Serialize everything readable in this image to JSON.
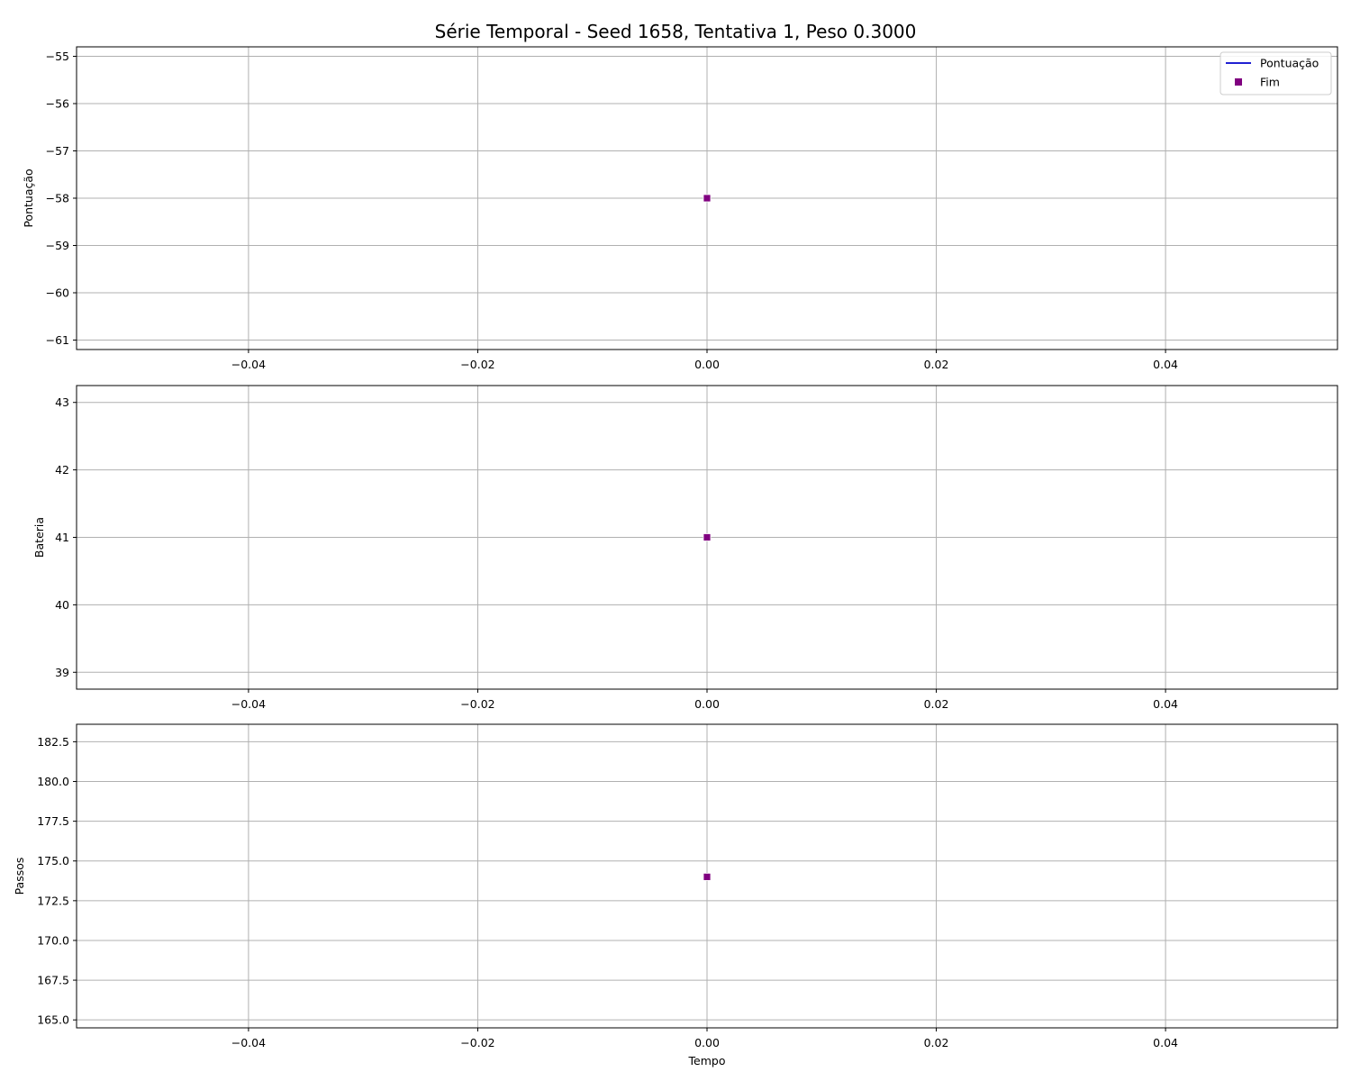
{
  "chart_data": {
    "title": "Série Temporal - Seed 1658, Tentativa 1, Peso 0.3000",
    "xlabel": "Tempo",
    "legend": {
      "placement": "top-right",
      "entries": [
        {
          "label": "Pontuação",
          "kind": "line",
          "color": "#0000cc"
        },
        {
          "label": "Fim",
          "kind": "square-marker",
          "color": "#800080"
        }
      ]
    },
    "grid": true,
    "xlim": [
      -0.055,
      0.055
    ],
    "xticks": [
      -0.04,
      -0.02,
      0.0,
      0.02,
      0.04
    ],
    "xtick_labels": [
      "−0.04",
      "−0.02",
      "0.00",
      "0.02",
      "0.04"
    ],
    "subplots": [
      {
        "type": "line",
        "ylabel": "Pontuação",
        "ylim": [
          -61.2,
          -54.8
        ],
        "yticks": [
          -55,
          -56,
          -57,
          -58,
          -59,
          -60,
          -61
        ],
        "ytick_labels": [
          "−55",
          "−56",
          "−57",
          "−58",
          "−59",
          "−60",
          "−61"
        ],
        "series": [
          {
            "name": "Pontuação",
            "x": [
              0.0
            ],
            "y": [
              -58
            ],
            "color": "#0000cc"
          }
        ],
        "end_marker": {
          "name": "Fim",
          "x": 0.0,
          "y": -58,
          "color": "#800080"
        }
      },
      {
        "type": "line",
        "ylabel": "Bateria",
        "ylim": [
          38.75,
          43.25
        ],
        "yticks": [
          39,
          40,
          41,
          42,
          43
        ],
        "ytick_labels": [
          "39",
          "40",
          "41",
          "42",
          "43"
        ],
        "series": [
          {
            "x": [
              0.0
            ],
            "y": [
              41
            ],
            "color": "#0000cc"
          }
        ],
        "end_marker": {
          "x": 0.0,
          "y": 41,
          "color": "#800080"
        }
      },
      {
        "type": "line",
        "ylabel": "Passos",
        "ylim": [
          164.5,
          183.6
        ],
        "yticks": [
          165.0,
          167.5,
          170.0,
          172.5,
          175.0,
          177.5,
          180.0,
          182.5
        ],
        "ytick_labels": [
          "165.0",
          "167.5",
          "170.0",
          "172.5",
          "175.0",
          "177.5",
          "180.0",
          "182.5"
        ],
        "series": [
          {
            "x": [
              0.0
            ],
            "y": [
              174
            ],
            "color": "#0000cc"
          }
        ],
        "end_marker": {
          "x": 0.0,
          "y": 174,
          "color": "#800080"
        }
      }
    ]
  }
}
